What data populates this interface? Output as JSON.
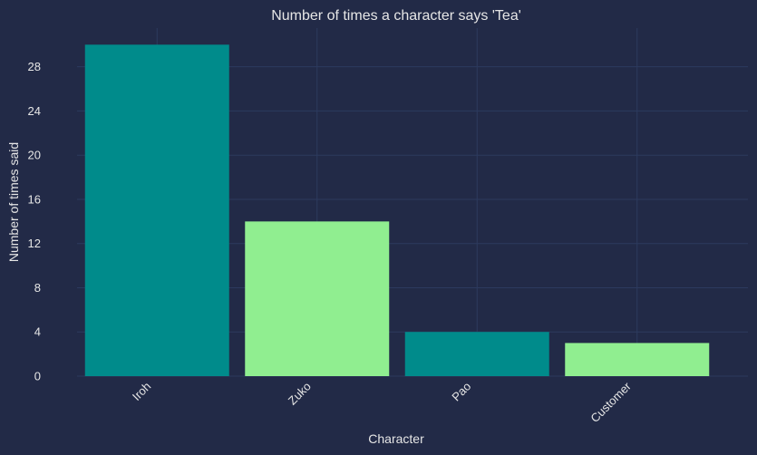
{
  "chart_data": {
    "type": "bar",
    "title": "Number of times a character says 'Tea'",
    "xlabel": "Character",
    "ylabel": "Number of times said",
    "categories": [
      "Iroh",
      "Zuko",
      "Pao",
      "Customer"
    ],
    "values": [
      30,
      14,
      4,
      3
    ],
    "bar_colors": [
      "#008b8b",
      "#90ee90",
      "#008b8b",
      "#90ee90"
    ],
    "ylim": [
      0,
      31.5
    ],
    "yticks": [
      0,
      4,
      8,
      12,
      16,
      20,
      24,
      28
    ],
    "grid": true,
    "background": "#222a47",
    "grid_color": "#2c3a5e"
  }
}
